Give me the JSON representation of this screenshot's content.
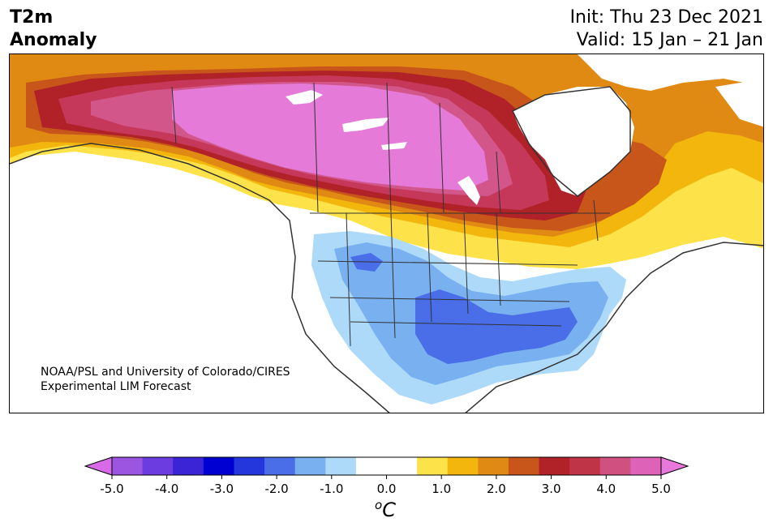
{
  "header": {
    "title_line1": "T2m",
    "title_line2": "Anomaly",
    "init": "Init: Thu 23 Dec 2021",
    "valid": "Valid: 15 Jan – 21 Jan"
  },
  "credit": {
    "line1": "NOAA/PSL and University of Colorado/CIRES",
    "line2": "Experimental LIM Forecast"
  },
  "colorbar": {
    "ticks": [
      "-5.0",
      "-4.0",
      "-3.0",
      "-2.0",
      "-1.0",
      "0.0",
      "1.0",
      "2.0",
      "3.0",
      "4.0",
      "5.0"
    ],
    "unit_sup": "o",
    "unit": "C",
    "colors": [
      "#9b55e0",
      "#6b3de0",
      "#3a24d5",
      "#0000d2",
      "#2437dc",
      "#4a6de8",
      "#78b0f0",
      "#acdaf8",
      "#ffffff",
      "#ffffff",
      "#fde24a",
      "#f2b60c",
      "#e08a14",
      "#c8561a",
      "#b02228",
      "#c03448",
      "#d05080",
      "#dd62b8"
    ],
    "low_extend_color": "#d86ae8",
    "high_extend_color": "#e878dc"
  },
  "map": {
    "region": "North America",
    "field": "2m temperature anomaly",
    "colors": {
      "warm_extreme": "#e57ad9",
      "warm_high": "#c6385a",
      "warm_mid": "#c8561a",
      "warm_low": "#f2b60c",
      "warm_min": "#fde24a",
      "cool_min": "#acdaf8",
      "cool_low": "#78b0f0",
      "cool_mid": "#4a6de8"
    }
  }
}
